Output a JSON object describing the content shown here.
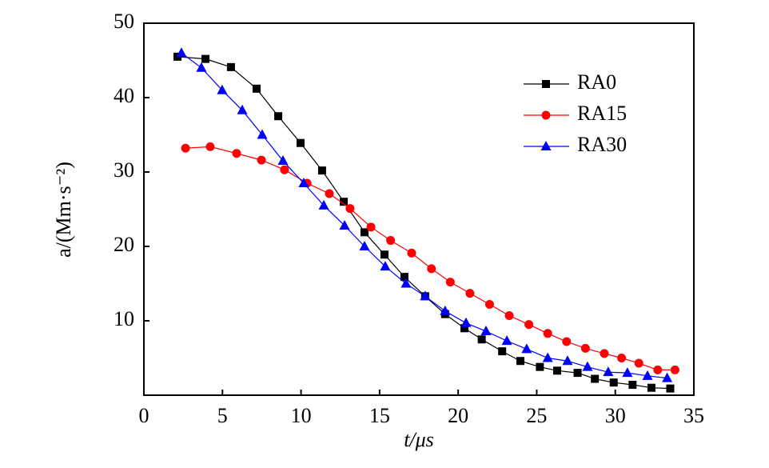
{
  "chart_data": {
    "type": "line",
    "xlabel": "t/μs",
    "ylabel": "a/(Mm·s⁻²)",
    "xlim": [
      0,
      35
    ],
    "xticks": [
      0,
      5,
      10,
      15,
      20,
      25,
      30,
      35
    ],
    "ylim": [
      0,
      50
    ],
    "yticks": [
      10,
      20,
      30,
      40,
      50
    ],
    "legend": "upper right",
    "series": [
      {
        "name": "RA0",
        "color": "#000000",
        "marker": "square",
        "x": [
          2.14,
          3.92,
          5.54,
          7.17,
          8.55,
          9.97,
          11.34,
          12.72,
          14.04,
          15.31,
          16.58,
          17.9,
          19.17,
          20.4,
          21.5,
          22.8,
          23.96,
          25.2,
          26.3,
          27.6,
          28.7,
          29.9,
          31.1,
          32.3,
          33.5
        ],
        "values": [
          45.5,
          45.2,
          44.1,
          41.2,
          37.5,
          33.9,
          30.2,
          26.0,
          21.9,
          18.9,
          15.9,
          13.3,
          10.9,
          9.0,
          7.5,
          5.9,
          4.6,
          3.8,
          3.3,
          3.0,
          2.2,
          1.7,
          1.4,
          1.0,
          0.9
        ]
      },
      {
        "name": "RA15",
        "color": "#ff0000",
        "marker": "circle",
        "x": [
          2.65,
          4.22,
          5.9,
          7.48,
          8.95,
          10.38,
          11.8,
          13.12,
          14.45,
          15.7,
          17.04,
          18.3,
          19.5,
          20.75,
          22.0,
          23.25,
          24.5,
          25.7,
          26.9,
          28.1,
          29.3,
          30.4,
          31.5,
          32.7,
          33.8
        ],
        "values": [
          33.2,
          33.4,
          32.5,
          31.6,
          30.3,
          28.5,
          27.1,
          25.1,
          22.6,
          20.8,
          19.1,
          17.0,
          15.2,
          13.7,
          12.2,
          10.7,
          9.5,
          8.3,
          7.2,
          6.3,
          5.6,
          5.0,
          4.3,
          3.4,
          3.4
        ]
      },
      {
        "name": "RA30",
        "color": "#0000ff",
        "marker": "triangle",
        "x": [
          2.39,
          3.66,
          4.98,
          6.26,
          7.53,
          8.85,
          10.17,
          11.45,
          12.77,
          14.04,
          15.36,
          16.68,
          17.9,
          19.17,
          20.5,
          21.77,
          23.1,
          24.36,
          25.7,
          26.96,
          28.23,
          29.55,
          30.77,
          32.05,
          33.3
        ],
        "values": [
          46.0,
          44.0,
          41.0,
          38.3,
          35.0,
          31.5,
          28.5,
          25.5,
          22.8,
          20.0,
          17.3,
          15.0,
          13.3,
          11.3,
          9.7,
          8.6,
          7.3,
          6.2,
          5.0,
          4.6,
          3.8,
          3.1,
          3.0,
          2.6,
          2.3
        ]
      }
    ]
  }
}
